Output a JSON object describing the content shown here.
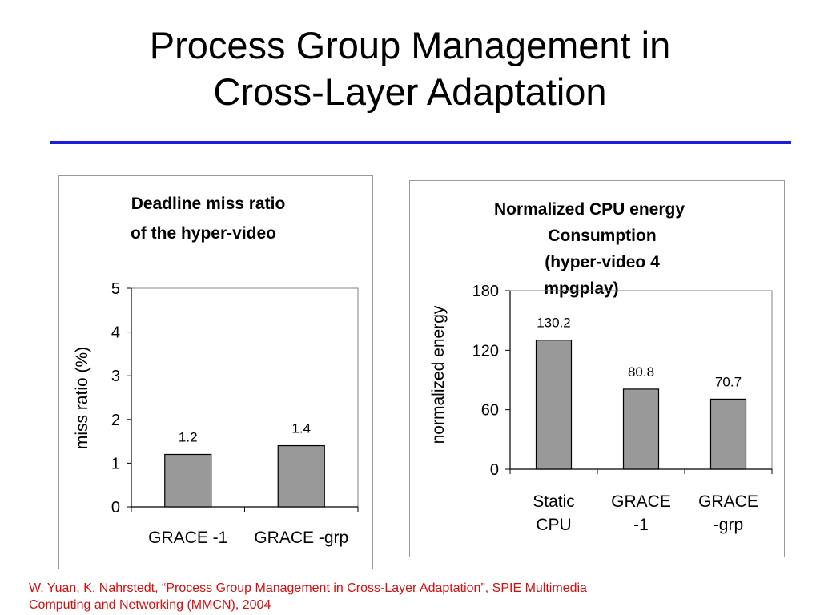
{
  "slide": {
    "title_line1": "Process Group Management in",
    "title_line2": "Cross-Layer Adaptation",
    "citation_line1": "W. Yuan, K. Nahrstedt, “Process Group Management in Cross-Layer Adaptation”, SPIE Multimedia",
    "citation_line2": "Computing and Networking (MMCN), 2004",
    "accent_color": "#1d1de0",
    "citation_color": "#d01010",
    "bar_color": "#999999"
  },
  "chart_data": [
    {
      "type": "bar",
      "title_lines": [
        "Deadline miss ratio",
        "of the hyper-video"
      ],
      "ylabel": "miss ratio (%)",
      "categories": [
        [
          "GRACE -1"
        ],
        [
          "GRACE -grp"
        ]
      ],
      "values": [
        1.2,
        1.4
      ],
      "value_labels": [
        "1.2",
        "1.4"
      ],
      "ylim": [
        0,
        5
      ],
      "yticks": [
        0,
        1,
        2,
        3,
        4,
        5
      ],
      "grid": false,
      "legend": "none"
    },
    {
      "type": "bar",
      "title_lines": [
        "Normalized CPU energy",
        "Consumption",
        "(hyper-video 4",
        "mpgplay)"
      ],
      "ylabel": "normalized energy",
      "categories": [
        [
          "Static",
          "CPU"
        ],
        [
          "GRACE",
          "-1"
        ],
        [
          "GRACE",
          "-grp"
        ]
      ],
      "values": [
        130.2,
        80.8,
        70.7
      ],
      "value_labels": [
        "130.2",
        "80.8",
        "70.7"
      ],
      "ylim": [
        0,
        180
      ],
      "yticks": [
        0,
        60,
        120,
        180
      ],
      "grid": false,
      "legend": "none"
    }
  ]
}
